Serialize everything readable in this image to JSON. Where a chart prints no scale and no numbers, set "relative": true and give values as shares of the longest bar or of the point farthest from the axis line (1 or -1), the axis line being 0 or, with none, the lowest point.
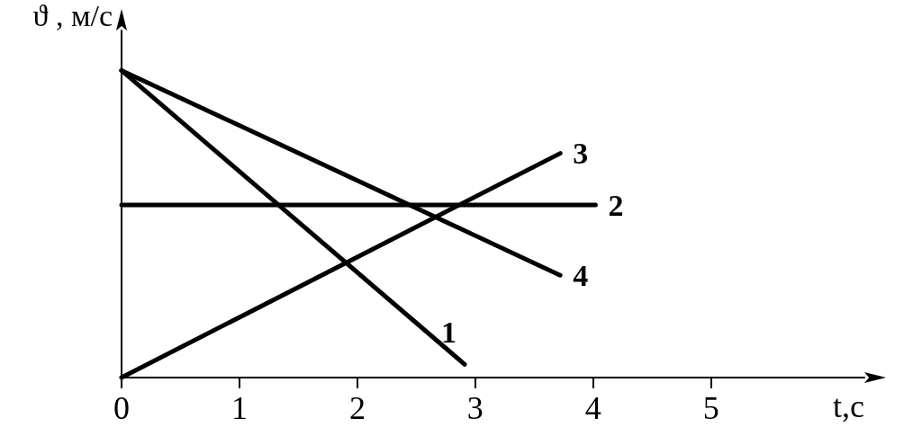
{
  "chart_data": {
    "type": "line",
    "relative": true,
    "xlabel": "t,c",
    "ylabel": "ϑ , м/с",
    "xlim": [
      0,
      6.3
    ],
    "xticks": [
      0,
      1,
      2,
      3,
      4,
      5
    ],
    "marker": "none",
    "line_style": "solid",
    "grid": false,
    "legend": false,
    "series": [
      {
        "name": "1",
        "color": "#000000",
        "x": [
          0,
          2.91
        ],
        "values": [
          1,
          0.043
        ]
      },
      {
        "name": "2",
        "color": "#000000",
        "x": [
          0,
          4.02
        ],
        "values": [
          0.562,
          0.562
        ]
      },
      {
        "name": "3",
        "color": "#000000",
        "x": [
          0,
          3.72
        ],
        "values": [
          0,
          0.73
        ]
      },
      {
        "name": "4",
        "color": "#000000",
        "x": [
          0,
          3.72
        ],
        "values": [
          1,
          0.333
        ]
      }
    ]
  }
}
